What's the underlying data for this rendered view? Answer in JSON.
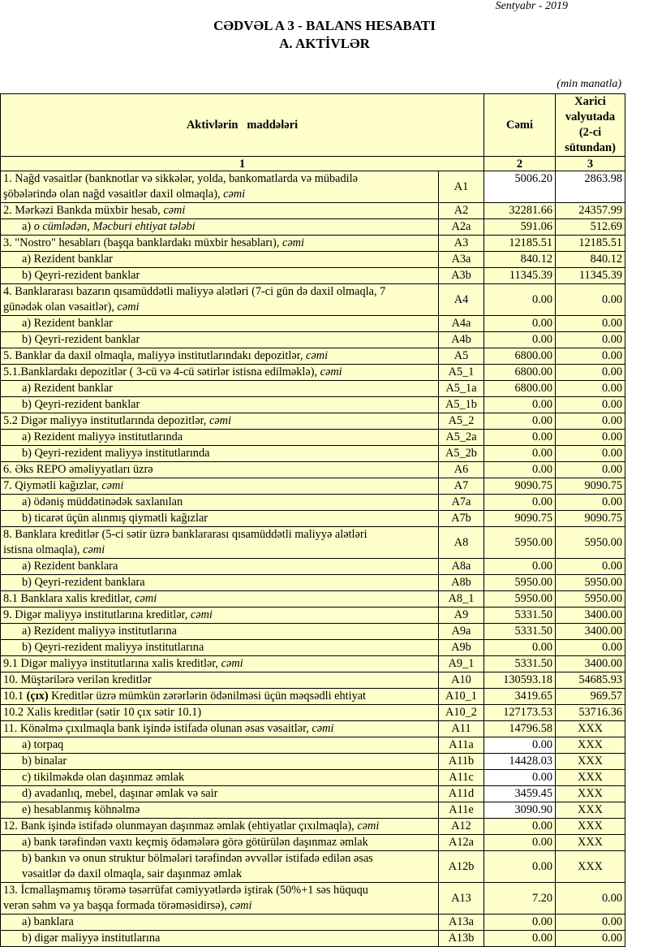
{
  "header": {
    "date": "Sentyabr - 2019",
    "title": "CƏDVƏL A 3 - BALANS HESABATI",
    "subtitle": "A. AKTİVLƏR",
    "unit": "(min manatla)"
  },
  "table": {
    "columns": {
      "items": "Aktivlərin   maddələri",
      "total": "Cəmi",
      "foreign": "Xarici valyutada (2-ci sütundan)"
    },
    "column_numbers": [
      "1",
      "2",
      "3"
    ],
    "colors": {
      "cell_bg": "#ffffcc",
      "input_bg": "#ffffff"
    },
    "rows": [
      {
        "parts": [
          {
            "t": "1. Nağd vəsaitlər (banknotlar və sikkələr, yolda, bankomatlarda və mübadilə\nşöbələrində olan nağd vəsaitlər daxil olmaqla), "
          },
          {
            "t": "cəmi",
            "s": "i"
          }
        ],
        "code": "A1",
        "total": "5006.20",
        "foreign": "2863.98",
        "white_total": true,
        "white_foreign": true
      },
      {
        "parts": [
          {
            "t": "2. Mərkəzi Bankda müxbir hesab, "
          },
          {
            "t": "cəmi",
            "s": "i"
          }
        ],
        "code": "A2",
        "total": "32281.66",
        "foreign": "24357.99"
      },
      {
        "indent": true,
        "parts": [
          {
            "t": "a) "
          },
          {
            "t": "o cümlədən, Məcburi ehtiyat tələbi",
            "s": "i"
          }
        ],
        "code": "A2a",
        "total": "591.06",
        "foreign": "512.69"
      },
      {
        "parts": [
          {
            "t": "3. \"Nostro\" hesabları (başqa banklardakı müxbir hesabları), "
          },
          {
            "t": "cəmi",
            "s": "i"
          }
        ],
        "code": "A3",
        "total": "12185.51",
        "foreign": "12185.51"
      },
      {
        "indent": true,
        "parts": [
          {
            "t": "a) Rezident banklar"
          }
        ],
        "code": "A3a",
        "total": "840.12",
        "foreign": "840.12"
      },
      {
        "indent": true,
        "parts": [
          {
            "t": "b) Qeyri-rezident banklar"
          }
        ],
        "code": "A3b",
        "total": "11345.39",
        "foreign": "11345.39"
      },
      {
        "parts": [
          {
            "t": "4. Banklararası bazarın qısamüddətli maliyyə alətləri (7-ci gün də daxil olmaqla, 7\ngünədək olan vəsaitlər), "
          },
          {
            "t": "cəmi",
            "s": "i"
          }
        ],
        "code": "A4",
        "total": "0.00",
        "foreign": "0.00",
        "mid": true
      },
      {
        "indent": true,
        "parts": [
          {
            "t": "a) Rezident banklar"
          }
        ],
        "code": "A4a",
        "total": "0.00",
        "foreign": "0.00"
      },
      {
        "indent": true,
        "parts": [
          {
            "t": "b) Qeyri-rezident banklar"
          }
        ],
        "code": "A4b",
        "total": "0.00",
        "foreign": "0.00"
      },
      {
        "parts": [
          {
            "t": "5. Banklar da daxil olmaqla, maliyyə institutlarındakı depozitlər, "
          },
          {
            "t": "cəmi",
            "s": "i"
          }
        ],
        "code": "A5",
        "total": "6800.00",
        "foreign": "0.00"
      },
      {
        "parts": [
          {
            "t": "5.1.Banklardakı depozitlər ( 3-cü və 4-cü sətirlər istisna edilməklə), "
          },
          {
            "t": "cəmi",
            "s": "i"
          }
        ],
        "code": "A5_1",
        "total": "6800.00",
        "foreign": "0.00"
      },
      {
        "indent": true,
        "parts": [
          {
            "t": "a) Rezident banklar"
          }
        ],
        "code": "A5_1a",
        "total": "6800.00",
        "foreign": "0.00"
      },
      {
        "indent": true,
        "parts": [
          {
            "t": "b) Qeyri-rezident banklar"
          }
        ],
        "code": "A5_1b",
        "total": "0.00",
        "foreign": "0.00"
      },
      {
        "parts": [
          {
            "t": "5.2 Digər maliyyə institutlarında depozitlər, "
          },
          {
            "t": "cəmi",
            "s": "i"
          }
        ],
        "code": "A5_2",
        "total": "0.00",
        "foreign": "0.00"
      },
      {
        "indent": true,
        "parts": [
          {
            "t": "a) Rezident maliyyə institutlarında"
          }
        ],
        "code": "A5_2a",
        "total": "0.00",
        "foreign": "0.00"
      },
      {
        "indent": true,
        "parts": [
          {
            "t": "b) Qeyri-rezident maliyyə institutlarında"
          }
        ],
        "code": "A5_2b",
        "total": "0.00",
        "foreign": "0.00"
      },
      {
        "parts": [
          {
            "t": "6. Əks REPO əməliyyatları üzrə"
          }
        ],
        "code": "A6",
        "total": "0.00",
        "foreign": "0.00"
      },
      {
        "parts": [
          {
            "t": "7. Qiymətli kağızlar, "
          },
          {
            "t": "cəmi",
            "s": "i"
          }
        ],
        "code": "A7",
        "total": "9090.75",
        "foreign": "9090.75"
      },
      {
        "indent": true,
        "parts": [
          {
            "t": "a) ödəniş müddətinədək saxlanılan"
          }
        ],
        "code": "A7a",
        "total": "0.00",
        "foreign": "0.00"
      },
      {
        "indent": true,
        "parts": [
          {
            "t": "b) ticarət üçün alınmış qiymətli kağızlar"
          }
        ],
        "code": "A7b",
        "total": "9090.75",
        "foreign": "9090.75"
      },
      {
        "parts": [
          {
            "t": "8. Banklara kreditlər (5-ci sətir üzrə banklararası qısamüddətli maliyyə alətləri\nistisna olmaqla), "
          },
          {
            "t": "cəmi",
            "s": "i"
          }
        ],
        "code": "A8",
        "total": "5950.00",
        "foreign": "5950.00",
        "mid": true
      },
      {
        "indent": true,
        "parts": [
          {
            "t": "a) Rezident banklara"
          }
        ],
        "code": "A8a",
        "total": "0.00",
        "foreign": "0.00"
      },
      {
        "indent": true,
        "parts": [
          {
            "t": "b) Qeyri-rezident banklara"
          }
        ],
        "code": "A8b",
        "total": "5950.00",
        "foreign": "5950.00"
      },
      {
        "parts": [
          {
            "t": "8.1 Banklara xalis kreditlər, "
          },
          {
            "t": "cəmi",
            "s": "i"
          }
        ],
        "code": "A8_1",
        "total": "5950.00",
        "foreign": "5950.00"
      },
      {
        "parts": [
          {
            "t": "9. Digər maliyyə institutlarına kreditlər, "
          },
          {
            "t": "cəmi",
            "s": "i"
          }
        ],
        "code": "A9",
        "total": "5331.50",
        "foreign": "3400.00"
      },
      {
        "indent": true,
        "parts": [
          {
            "t": "a) Rezident maliyyə institutlarına"
          }
        ],
        "code": "A9a",
        "total": "5331.50",
        "foreign": "3400.00"
      },
      {
        "indent": true,
        "parts": [
          {
            "t": "b) Qeyri-rezident maliyyə institutlarına"
          }
        ],
        "code": "A9b",
        "total": "0.00",
        "foreign": "0.00"
      },
      {
        "parts": [
          {
            "t": "9.1 Digər maliyyə institutlarına xalis kreditlər, "
          },
          {
            "t": "cəmi",
            "s": "i"
          }
        ],
        "code": "A9_1",
        "total": "5331.50",
        "foreign": "3400.00"
      },
      {
        "parts": [
          {
            "t": "10. Müştərilərə verilən kreditlər"
          }
        ],
        "code": "A10",
        "total": "130593.18",
        "foreign": "54685.93"
      },
      {
        "parts": [
          {
            "t": "10.1 "
          },
          {
            "t": "(çıx)",
            "s": "b"
          },
          {
            "t": " Kreditlər üzrə mümkün zərərlərin ödənilməsi üçün məqsədli ehtiyat"
          }
        ],
        "code": "A10_1",
        "total": "3419.65",
        "foreign": "969.57"
      },
      {
        "parts": [
          {
            "t": "10.2 Xalis kreditlər (sətir 10 çıx sətir 10.1)"
          }
        ],
        "code": "A10_2",
        "total": "127173.53",
        "foreign": "53716.36"
      },
      {
        "parts": [
          {
            "t": "11. Könəlmə çıxılmaqla bank işində istifadə olunan əsas vəsaitlər, "
          },
          {
            "t": "cəmi",
            "s": "i"
          }
        ],
        "code": "A11",
        "total": "14796.58",
        "foreign": "XXX"
      },
      {
        "indent": true,
        "parts": [
          {
            "t": "a) torpaq"
          }
        ],
        "code": "A11a",
        "total": "0.00",
        "foreign": "XXX",
        "white_total": true
      },
      {
        "indent": true,
        "parts": [
          {
            "t": "b) binalar"
          }
        ],
        "code": "A11b",
        "total": "14428.03",
        "foreign": "XXX",
        "white_total": true
      },
      {
        "indent": true,
        "parts": [
          {
            "t": "c) tikilməkdə olan daşınmaz əmlak"
          }
        ],
        "code": "A11c",
        "total": "0.00",
        "foreign": "XXX",
        "white_total": true
      },
      {
        "indent": true,
        "parts": [
          {
            "t": "d) avadanlıq, mebel, daşınar əmlak və sair"
          }
        ],
        "code": "A11d",
        "total": "3459.45",
        "foreign": "XXX",
        "white_total": true
      },
      {
        "indent": true,
        "parts": [
          {
            "t": "e) hesablanmış köhnəlmə"
          }
        ],
        "code": "A11e",
        "total": "3090.90",
        "foreign": "XXX",
        "white_total": true
      },
      {
        "parts": [
          {
            "t": "12. Bank işində istifadə olunmayan daşınmaz əmlak (ehtiyatlar çıxılmaqla), "
          },
          {
            "t": "cəmi",
            "s": "i"
          }
        ],
        "code": "A12",
        "total": "0.00",
        "foreign": "XXX"
      },
      {
        "indent": true,
        "parts": [
          {
            "t": "a) bank tərəfindən vaxtı keçmiş ödəmələrə görə götürülən daşınmaz əmlak"
          }
        ],
        "code": "A12a",
        "total": "0.00",
        "foreign": "XXX"
      },
      {
        "indent": true,
        "parts": [
          {
            "t": "b) bankın və onun struktur bölmələri tərəfindən əvvəllər istifadə edilən əsas\nvəsaitlər də daxil olmaqla, sair daşınmaz əmlak"
          }
        ],
        "code": "A12b",
        "total": "0.00",
        "foreign": "XXX",
        "mid": true
      },
      {
        "parts": [
          {
            "t": "13. İcmallaşmamış törəmə təsərrüfat cəmiyyətlərdə iştirak (50%+1 səs hüququ\nverən səhm və ya başqa formada törəməsidirsə), "
          },
          {
            "t": "cəmi",
            "s": "i"
          }
        ],
        "code": "A13",
        "total": "7.20",
        "foreign": "0.00",
        "mid": true
      },
      {
        "indent": true,
        "parts": [
          {
            "t": "a) banklara"
          }
        ],
        "code": "A13a",
        "total": "0.00",
        "foreign": "0.00"
      },
      {
        "indent": true,
        "parts": [
          {
            "t": "b) digər maliyyə institutlarına"
          }
        ],
        "code": "A13b",
        "total": "0.00",
        "foreign": "0.00"
      }
    ]
  }
}
